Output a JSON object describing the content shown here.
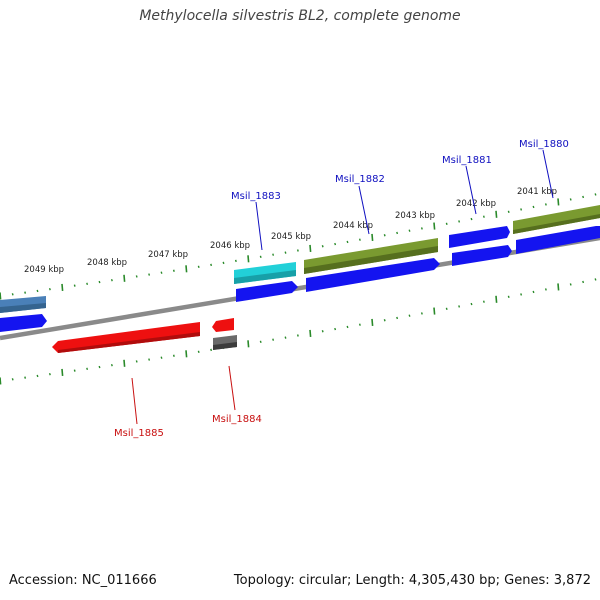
{
  "title": "Methylocella silvestris BL2, complete genome",
  "footer": {
    "accession": "Accession: NC_011666",
    "stats": "Topology: circular; Length: 4,305,430 bp; Genes: 3,872"
  },
  "colors": {
    "backbone": "#888888",
    "tick": "#2a8a2a",
    "forward_cds": "#1010e8",
    "reverse_cds": "#e81010",
    "olive": "#6f8f28",
    "cyan": "#20c8d0",
    "steel": "#4a7db0",
    "gray": "#666666",
    "label_forward": "#1010c0",
    "label_reverse": "#c81010"
  },
  "ruler_labels": [
    "2049 kbp",
    "2048 kbp",
    "2047 kbp",
    "2046 kbp",
    "2045 kbp",
    "2044 kbp",
    "2043 kbp",
    "2042 kbp",
    "2041 kbp"
  ],
  "gene_labels": {
    "msil_1880": "Msil_1880",
    "msil_1881": "Msil_1881",
    "msil_1882": "Msil_1882",
    "msil_1883": "Msil_1883",
    "msil_1884": "Msil_1884",
    "msil_1885": "Msil_1885"
  }
}
